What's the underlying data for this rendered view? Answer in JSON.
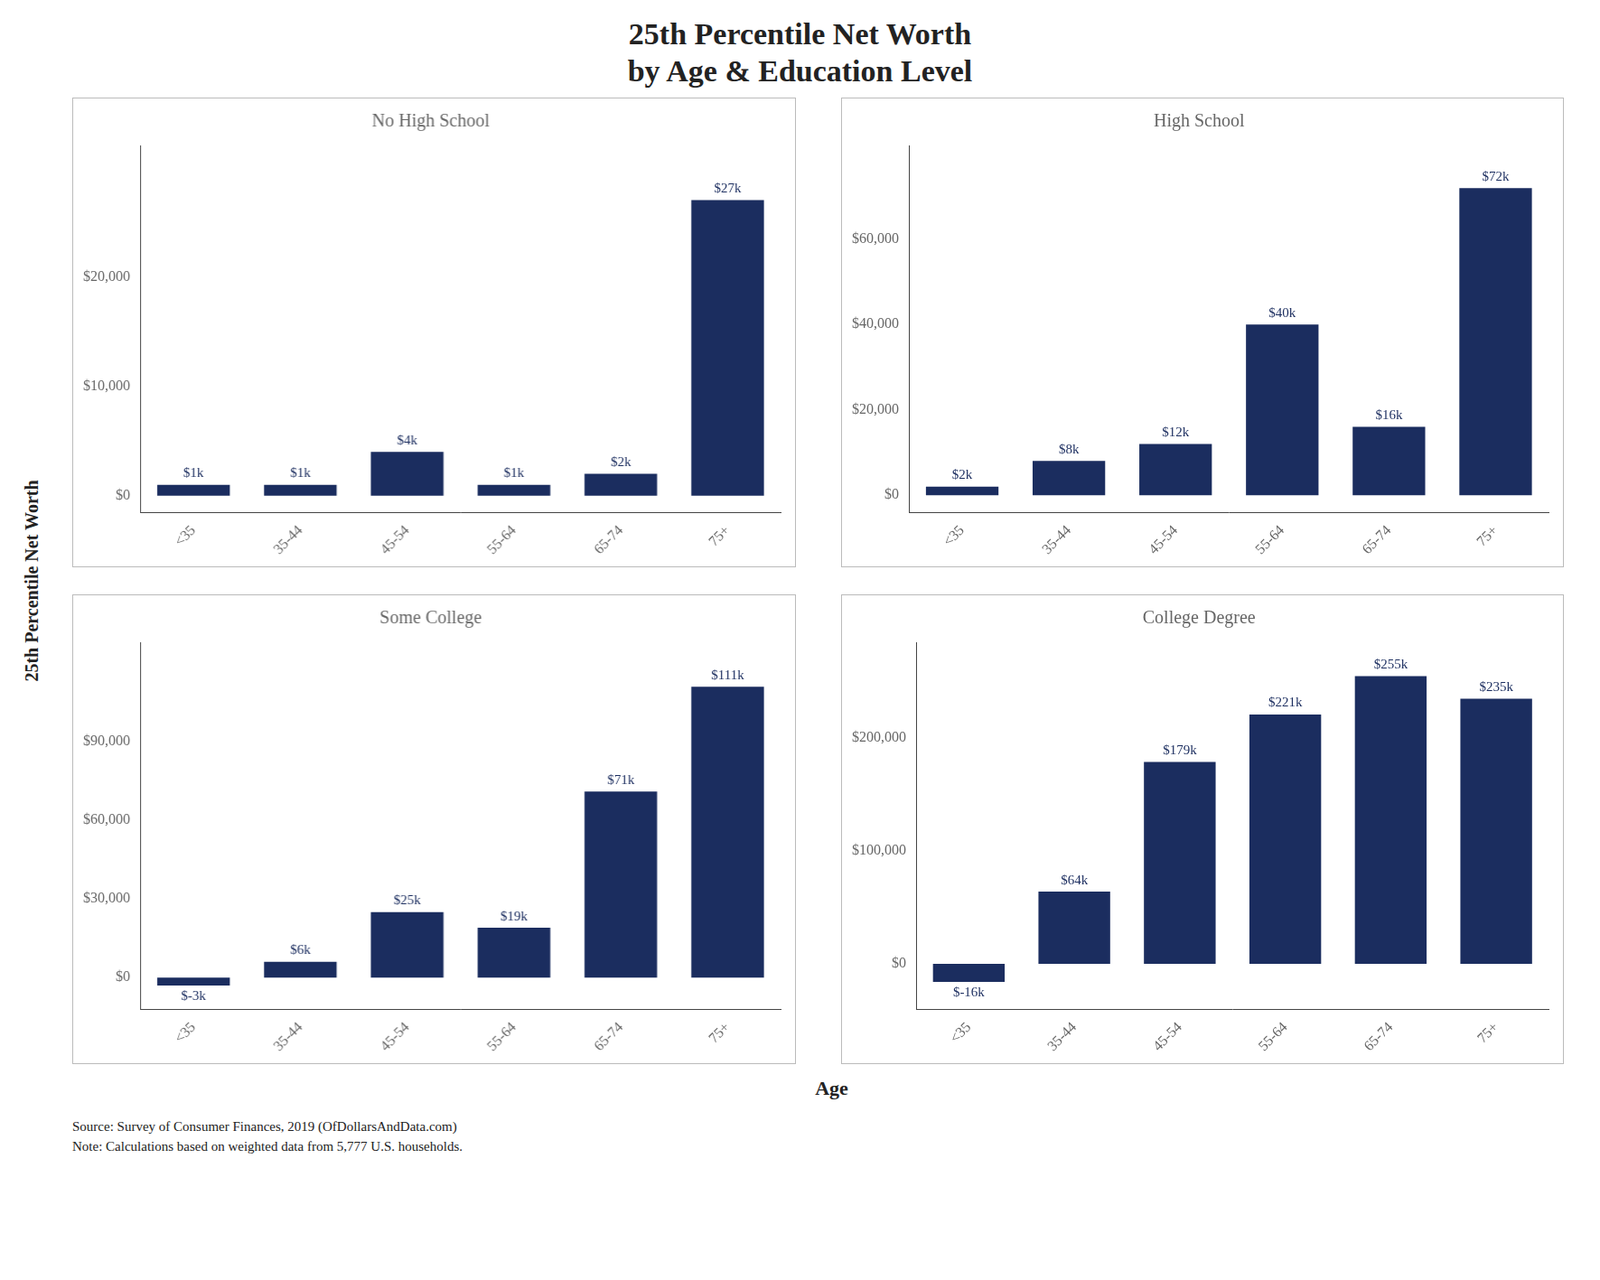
{
  "title": "25th Percentile Net Worth\nby Age & Education Level",
  "ylabel": "25th Percentile Net Worth",
  "xlabel": "Age",
  "annotations": [
    "Source:  Survey of Consumer Finances, 2019 (OfDollarsAndData.com)\nNote: Calculations based on weighted data from 5,777 U.S. households."
  ],
  "chart_data": [
    {
      "type": "bar",
      "title": "No High School",
      "categories": [
        "<35",
        "35-44",
        "45-54",
        "55-64",
        "65-74",
        "75+"
      ],
      "values": [
        1000,
        1000,
        4000,
        1000,
        2000,
        27000
      ],
      "value_labels": [
        "$1k",
        "$1k",
        "$4k",
        "$1k",
        "$2k",
        "$27k"
      ],
      "color": "#1b2d5f",
      "ylim": [
        -1500,
        32000
      ],
      "yticks": [
        {
          "value": 0,
          "label": "$0"
        },
        {
          "value": 10000,
          "label": "$10,000"
        },
        {
          "value": 20000,
          "label": "$20,000"
        }
      ],
      "grid": false,
      "data_labels": true
    },
    {
      "type": "bar",
      "title": "High School",
      "categories": [
        "<35",
        "35-44",
        "45-54",
        "55-64",
        "65-74",
        "75+"
      ],
      "values": [
        2000,
        8000,
        12000,
        40000,
        16000,
        72000
      ],
      "value_labels": [
        "$2k",
        "$8k",
        "$12k",
        "$40k",
        "$16k",
        "$72k"
      ],
      "color": "#1b2d5f",
      "ylim": [
        -4000,
        82000
      ],
      "yticks": [
        {
          "value": 0,
          "label": "$0"
        },
        {
          "value": 20000,
          "label": "$20,000"
        },
        {
          "value": 40000,
          "label": "$40,000"
        },
        {
          "value": 60000,
          "label": "$60,000"
        }
      ],
      "grid": false,
      "data_labels": true
    },
    {
      "type": "bar",
      "title": "Some College",
      "categories": [
        "<35",
        "35-44",
        "45-54",
        "55-64",
        "65-74",
        "75+"
      ],
      "values": [
        -3000,
        6000,
        25000,
        19000,
        71000,
        111000
      ],
      "value_labels": [
        "$-3k",
        "$6k",
        "$25k",
        "$19k",
        "$71k",
        "$111k"
      ],
      "color": "#1b2d5f",
      "ylim": [
        -12000,
        128000
      ],
      "yticks": [
        {
          "value": 0,
          "label": "$0"
        },
        {
          "value": 30000,
          "label": "$30,000"
        },
        {
          "value": 60000,
          "label": "$60,000"
        },
        {
          "value": 90000,
          "label": "$90,000"
        }
      ],
      "grid": false,
      "data_labels": true
    },
    {
      "type": "bar",
      "title": "College Degree",
      "categories": [
        "<35",
        "35-44",
        "45-54",
        "55-64",
        "65-74",
        "75+"
      ],
      "values": [
        -16000,
        64000,
        179000,
        221000,
        255000,
        235000
      ],
      "value_labels": [
        "$-16k",
        "$64k",
        "$179k",
        "$221k",
        "$255k",
        "$235k"
      ],
      "color": "#1b2d5f",
      "ylim": [
        -40000,
        285000
      ],
      "yticks": [
        {
          "value": 0,
          "label": "$0"
        },
        {
          "value": 100000,
          "label": "$100,000"
        },
        {
          "value": 200000,
          "label": "$200,000"
        }
      ],
      "grid": false,
      "data_labels": true
    }
  ]
}
